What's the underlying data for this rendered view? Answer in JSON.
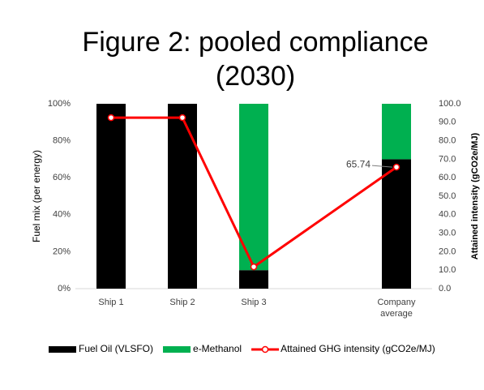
{
  "chart_data": {
    "type": "bar",
    "title": "Figure 2: pooled compliance (2030)",
    "title_lines": [
      "Figure 2: pooled compliance",
      "(2030)"
    ],
    "y_label": "Fuel mix (per energy)",
    "y2_label": "Attained intensity (gCO2e/MJ)",
    "categories": [
      "Ship 1",
      "Ship 2",
      "Ship 3",
      null,
      "Company average"
    ],
    "category_lines": [
      [
        "Ship 1"
      ],
      [
        "Ship 2"
      ],
      [
        "Ship 3"
      ],
      [],
      [
        "Company",
        "average"
      ]
    ],
    "stacked": true,
    "series": [
      {
        "name": "Fuel Oil (VLSFO)",
        "color": "#000000",
        "values": [
          100,
          100,
          10,
          null,
          70
        ]
      },
      {
        "name": "e-Methanol",
        "color": "#00b050",
        "values": [
          0,
          0,
          90,
          null,
          30
        ]
      },
      {
        "name": "Attained GHG intensity (gCO2e/MJ)",
        "type": "line",
        "axis": "y2",
        "color": "#ff0000",
        "values": [
          92.5,
          92.5,
          11.8,
          null,
          65.74
        ],
        "value_labels": [
          null,
          null,
          null,
          null,
          "65.74"
        ]
      }
    ],
    "ylim": [
      0,
      100
    ],
    "yticks": [
      {
        "value": 0,
        "label": "0%"
      },
      {
        "value": 20,
        "label": "20%"
      },
      {
        "value": 40,
        "label": "40%"
      },
      {
        "value": 60,
        "label": "60%"
      },
      {
        "value": 80,
        "label": "80%"
      },
      {
        "value": 100,
        "label": "100%"
      }
    ],
    "y2lim": [
      0,
      100
    ],
    "y2ticks": [
      {
        "value": 0,
        "label": "0.0"
      },
      {
        "value": 10,
        "label": "10.0"
      },
      {
        "value": 20,
        "label": "20.0"
      },
      {
        "value": 30,
        "label": "30.0"
      },
      {
        "value": 40,
        "label": "40.0"
      },
      {
        "value": 50,
        "label": "50.0"
      },
      {
        "value": 60,
        "label": "60.0"
      },
      {
        "value": 70,
        "label": "70.0"
      },
      {
        "value": 80,
        "label": "80.0"
      },
      {
        "value": 90,
        "label": "90.0"
      },
      {
        "value": 100,
        "label": "100.0"
      }
    ],
    "legend": "bottom"
  }
}
